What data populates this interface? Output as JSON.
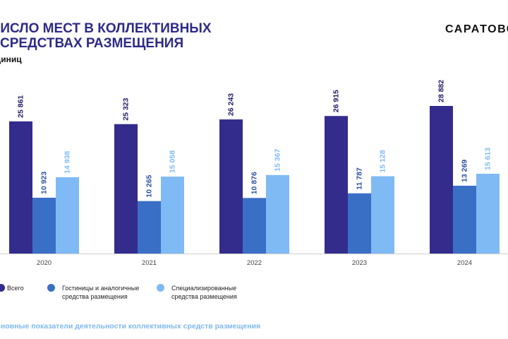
{
  "header": {
    "title": "ЧИСЛО МЕСТ В КОЛЛЕКТИВНЫХ\nСРЕДСТВАХ РАЗМЕЩЕНИЯ",
    "subtitle": "единиц",
    "brand": "САРАТОВС"
  },
  "footer": {
    "text": "Основные показатели деятельности коллективных средств размещения"
  },
  "chart_data": {
    "type": "bar",
    "categories": [
      "2020",
      "2021",
      "2022",
      "2023",
      "2024"
    ],
    "series": [
      {
        "name": "Всего",
        "values": [
          25861,
          25323,
          26243,
          26915,
          28882
        ],
        "color": "#332c8c",
        "labels": [
          "25 861",
          "25 323",
          "26 243",
          "26 915",
          "28 882"
        ],
        "label_color": "#1e1a66"
      },
      {
        "name": "Гостиницы и аналогичные средства размещения",
        "values": [
          10923,
          10265,
          10876,
          11787,
          13269
        ],
        "color": "#3a6fc6",
        "labels": [
          "10 923",
          "10 265",
          "10 876",
          "11 787",
          "13 269"
        ],
        "label_color": "#2a4fa0"
      },
      {
        "name": "Специализированные средства размещения",
        "values": [
          14938,
          15058,
          15367,
          15128,
          15613
        ],
        "color": "#7fbaf4",
        "labels": [
          "14 938",
          "15 058",
          "15 367",
          "15 128",
          "15 613"
        ],
        "label_color": "#7fbaf4"
      }
    ],
    "ylim": [
      0,
      28882
    ],
    "grid": false,
    "legend_position": "bottom"
  }
}
